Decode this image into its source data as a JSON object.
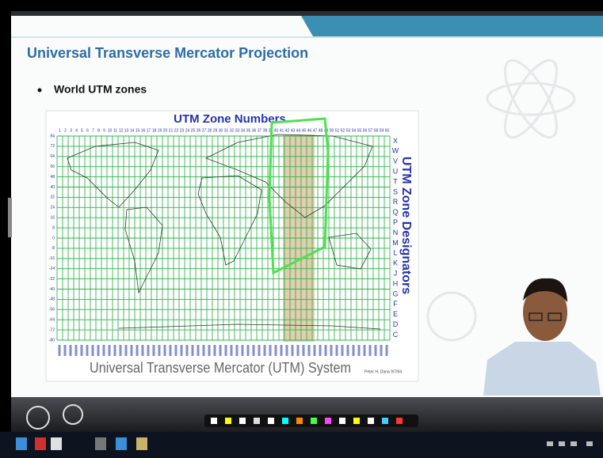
{
  "slide": {
    "title": "Universal Transverse Mercator Projection",
    "bullet": "World UTM zones",
    "map": {
      "top_label": "UTM Zone Numbers",
      "side_label": "UTM Zone Designators",
      "bottom_label": "Universal Transverse Mercator (UTM) System",
      "credit": "Peter H. Dana 9/7/94",
      "zone_numbers": [
        1,
        2,
        3,
        4,
        5,
        6,
        7,
        8,
        9,
        10,
        11,
        12,
        13,
        14,
        15,
        16,
        17,
        18,
        19,
        20,
        21,
        22,
        23,
        24,
        25,
        26,
        27,
        28,
        29,
        30,
        31,
        32,
        33,
        34,
        35,
        36,
        37,
        38,
        39,
        40,
        41,
        42,
        43,
        44,
        45,
        46,
        47,
        48,
        49,
        50,
        51,
        52,
        53,
        54,
        55,
        56,
        57,
        58,
        59,
        60
      ],
      "latitudes": [
        84,
        72,
        64,
        56,
        48,
        40,
        32,
        24,
        16,
        8,
        0,
        -8,
        -16,
        -24,
        -32,
        -40,
        -48,
        -56,
        -64,
        -72,
        -80
      ],
      "designators": [
        "X",
        "W",
        "V",
        "U",
        "T",
        "S",
        "R",
        "Q",
        "P",
        "N",
        "M",
        "L",
        "K",
        "J",
        "H",
        "G",
        "F",
        "E",
        "D",
        "C"
      ]
    }
  }
}
